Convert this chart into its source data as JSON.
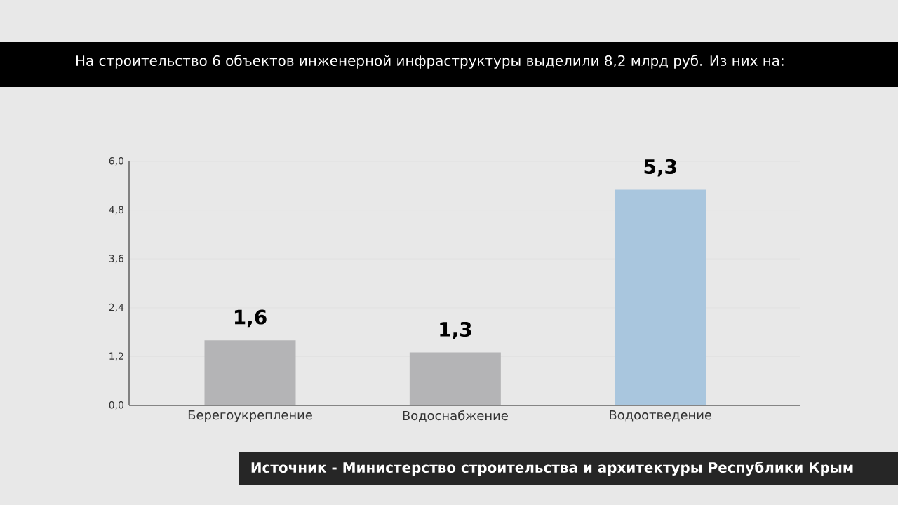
{
  "chart_data": {
    "type": "bar",
    "title": "На строительство 6 объектов инженерной инфраструктуры выделили 8,2 млрд руб. Из них на:",
    "categories": [
      "Берегоукрепление",
      "Водоснабжение",
      "Водоотведение"
    ],
    "values": [
      1.6,
      1.3,
      5.3
    ],
    "colors": [
      "#b4b4b6",
      "#b4b4b6",
      "#a9c6de"
    ],
    "value_labels": [
      "1,6",
      "1,3",
      "5,3"
    ],
    "ylim": [
      0,
      6
    ],
    "yticks": [
      {
        "value": 0,
        "label": "0,0"
      },
      {
        "value": 1.2,
        "label": "1,2"
      },
      {
        "value": 2.4,
        "label": "2,4"
      },
      {
        "value": 3.6,
        "label": "3,6"
      },
      {
        "value": 4.8,
        "label": "4,8"
      },
      {
        "value": 6,
        "label": "6,0"
      }
    ],
    "grid": "y",
    "annotations": [
      "Источник - Министерство строительства и архитектуры Республики Крым"
    ]
  }
}
